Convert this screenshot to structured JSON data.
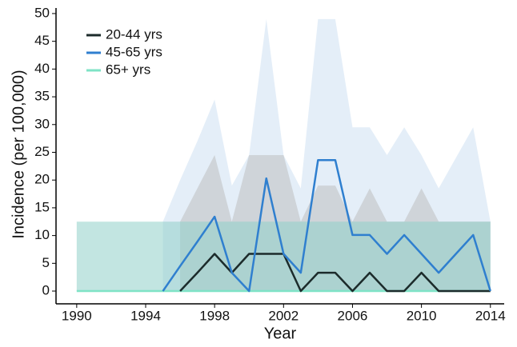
{
  "chart_data": {
    "type": "line",
    "x_label": "Year",
    "y_label": "Incidence (per 100,000)",
    "x": [
      1990,
      1991,
      1992,
      1993,
      1994,
      1995,
      1996,
      1997,
      1998,
      1999,
      2000,
      2001,
      2002,
      2003,
      2004,
      2005,
      2006,
      2007,
      2008,
      2009,
      2010,
      2011,
      2012,
      2013,
      2014
    ],
    "series": [
      {
        "name": "20-44 yrs",
        "color": "#1c2b2b",
        "band_color": "#b9b9b9",
        "values": [
          null,
          null,
          null,
          null,
          null,
          null,
          0,
          3.3,
          6.7,
          3.3,
          6.7,
          6.7,
          6.7,
          0,
          3.3,
          3.3,
          0,
          3.3,
          0,
          0,
          3.3,
          0,
          0,
          0,
          0
        ],
        "upper": [
          null,
          null,
          null,
          null,
          null,
          null,
          12.5,
          18.5,
          24.5,
          12.5,
          24.5,
          24.5,
          24.5,
          12.5,
          19,
          19,
          12.5,
          18.5,
          12.5,
          12.5,
          18.5,
          12.5,
          12.5,
          12.5,
          12.5
        ]
      },
      {
        "name": "45-65 yrs",
        "color": "#2f7fcf",
        "band_color": "#c9ddf2",
        "values": [
          null,
          null,
          null,
          null,
          null,
          0,
          4.5,
          8.9,
          13.4,
          3.3,
          0,
          20.3,
          6.7,
          3.3,
          23.6,
          23.6,
          10.1,
          10.1,
          6.7,
          10.1,
          6.7,
          3.3,
          6.7,
          10.1,
          0
        ],
        "upper": [
          null,
          null,
          null,
          null,
          null,
          12.5,
          20,
          27,
          34.5,
          19,
          24.5,
          49,
          24.5,
          18.5,
          49,
          49,
          29.5,
          29.5,
          24.5,
          29.5,
          24.5,
          18.5,
          24,
          29.5,
          12.5
        ]
      },
      {
        "name": "65+ yrs",
        "color": "#7fe3c6",
        "band_color": "#8fcfc8",
        "values": [
          0,
          0,
          0,
          0,
          0,
          0,
          0,
          0,
          0,
          0,
          0,
          0,
          0,
          0,
          0,
          0,
          0,
          0,
          0,
          0,
          0,
          0,
          0,
          0,
          0
        ],
        "upper": [
          12.5,
          12.5,
          12.5,
          12.5,
          12.5,
          12.5,
          12.5,
          12.5,
          12.5,
          12.5,
          12.5,
          12.5,
          12.5,
          12.5,
          12.5,
          12.5,
          12.5,
          12.5,
          12.5,
          12.5,
          12.5,
          12.5,
          12.5,
          12.5,
          12.5
        ]
      }
    ],
    "xlim": [
      1988.8,
      2014.8
    ],
    "xticks": [
      1990,
      1994,
      1998,
      2002,
      2006,
      2010,
      2014
    ],
    "ylim": [
      -2.3,
      51
    ],
    "yticks": [
      0,
      5,
      10,
      15,
      20,
      25,
      30,
      35,
      40,
      45,
      50
    ],
    "legend": "top-left"
  }
}
